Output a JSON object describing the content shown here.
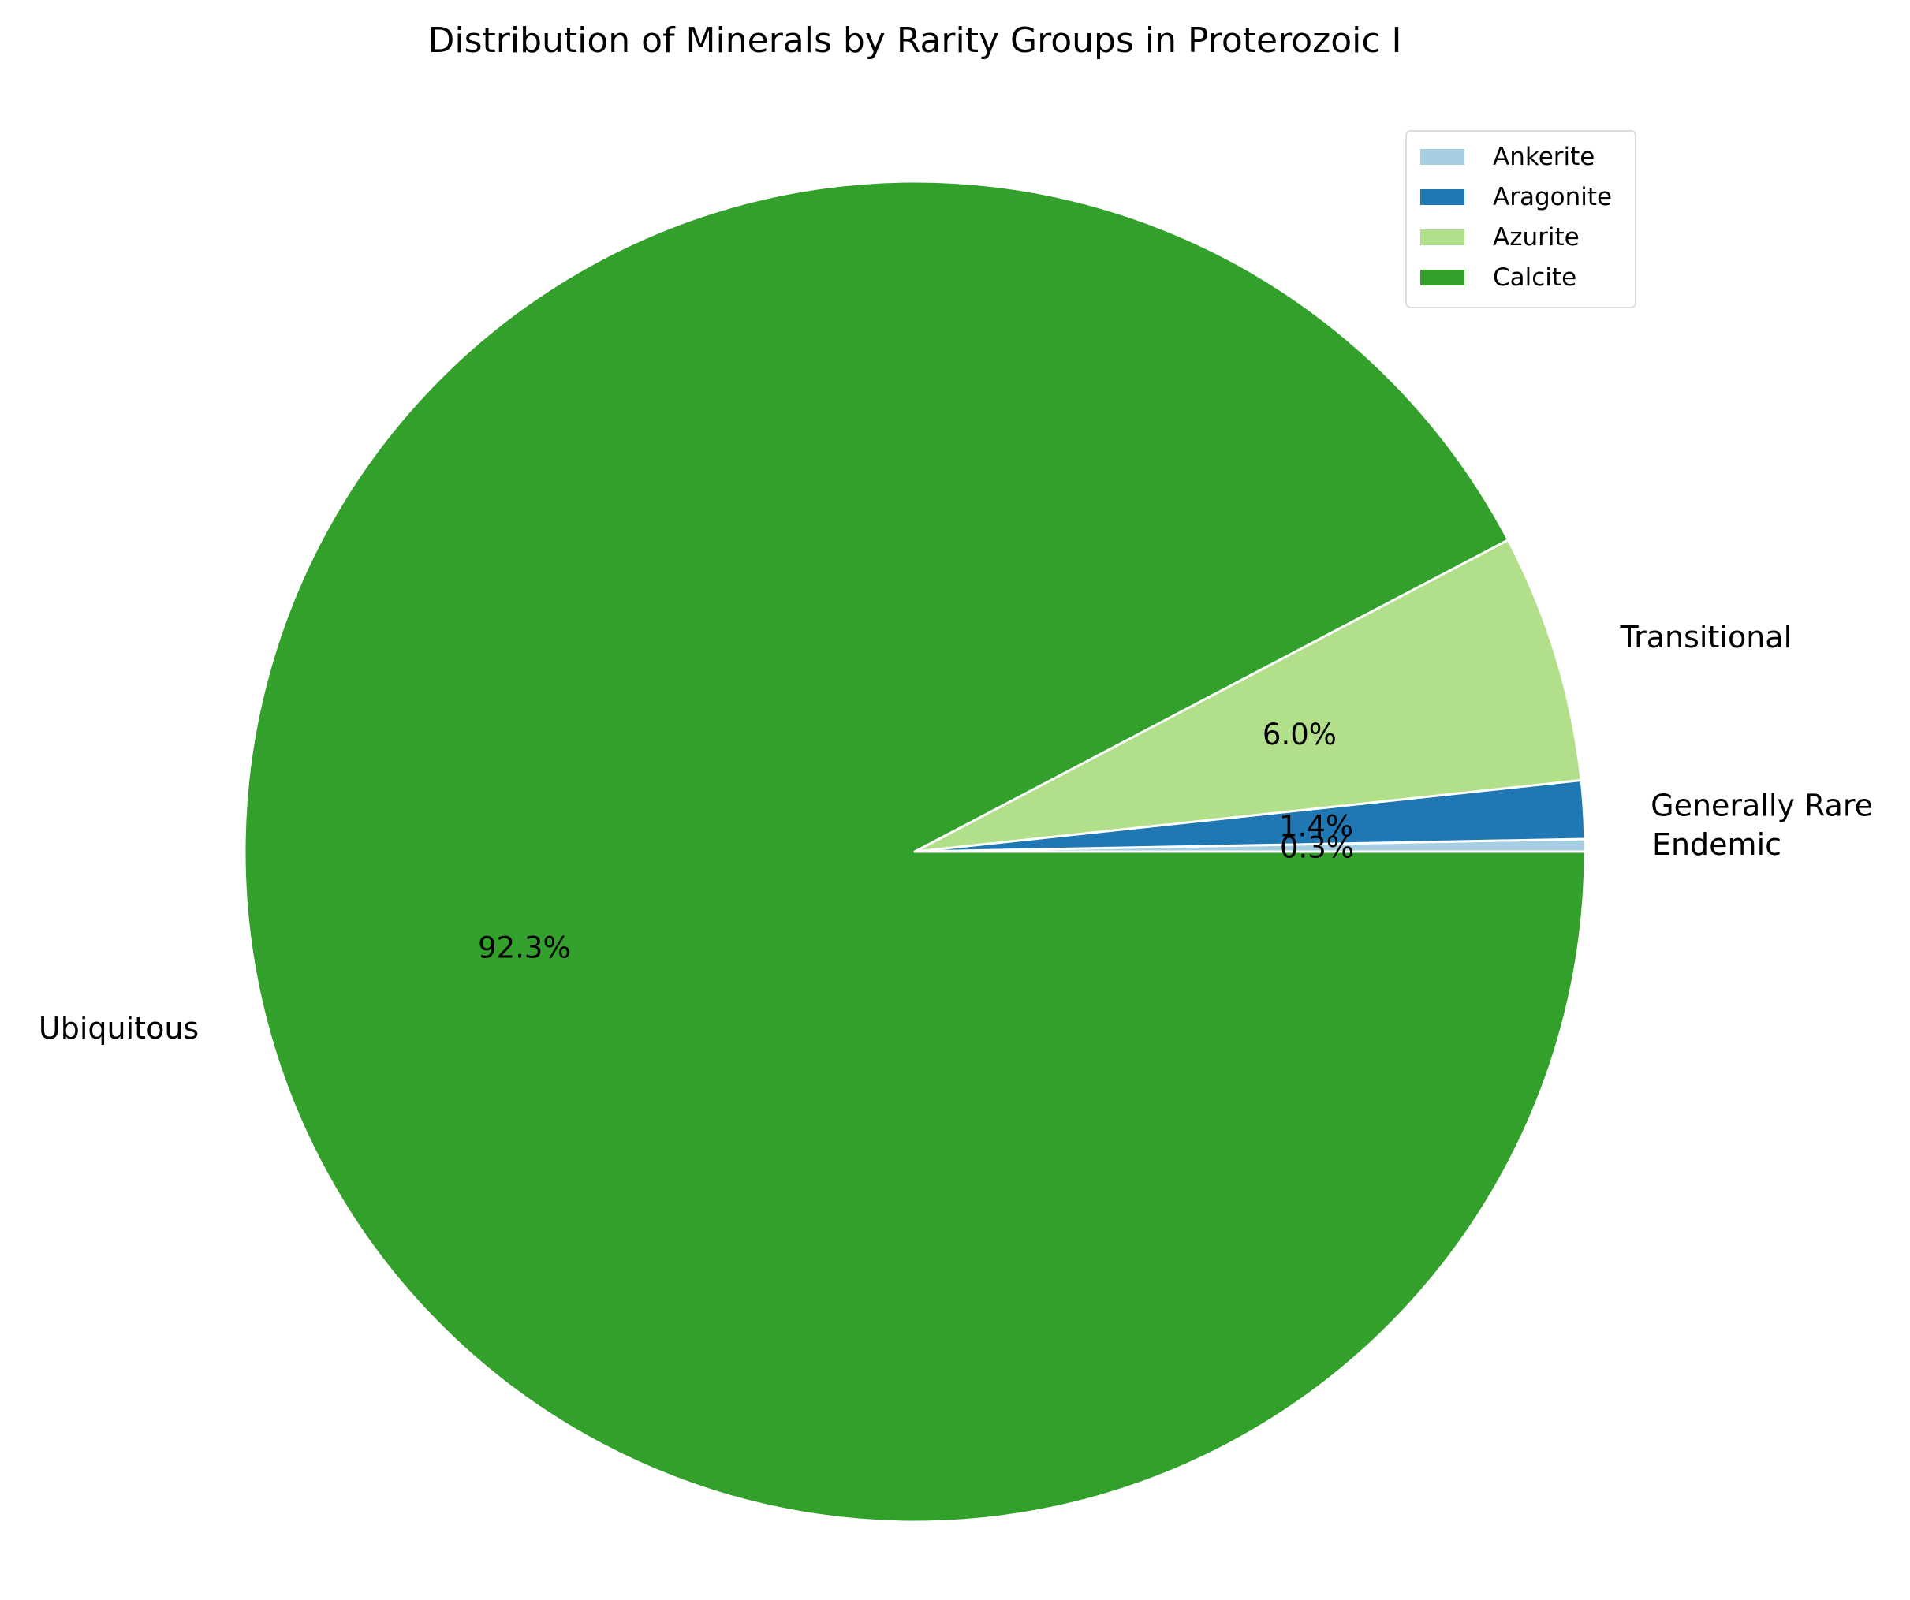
{
  "chart_data": {
    "type": "pie",
    "title": "Distribution of Minerals by Rarity Groups in Proterozoic I",
    "slices": [
      {
        "label": "Endemic",
        "legend": "Ankerite",
        "value": 0.3,
        "pct_label": "0.3%",
        "color": "#a6cee3"
      },
      {
        "label": "Generally Rare",
        "legend": "Aragonite",
        "value": 1.4,
        "pct_label": "1.4%",
        "color": "#1f78b4"
      },
      {
        "label": "Transitional",
        "legend": "Azurite",
        "value": 6.0,
        "pct_label": "6.0%",
        "color": "#b2df8a"
      },
      {
        "label": "Ubiquitous",
        "legend": "Calcite",
        "value": 92.3,
        "pct_label": "92.3%",
        "color": "#33a02c"
      }
    ],
    "start_angle": "0 degrees (3 o'clock), counter-clockwise",
    "legend_position": "top-right",
    "edge_color": "#ffffff"
  }
}
